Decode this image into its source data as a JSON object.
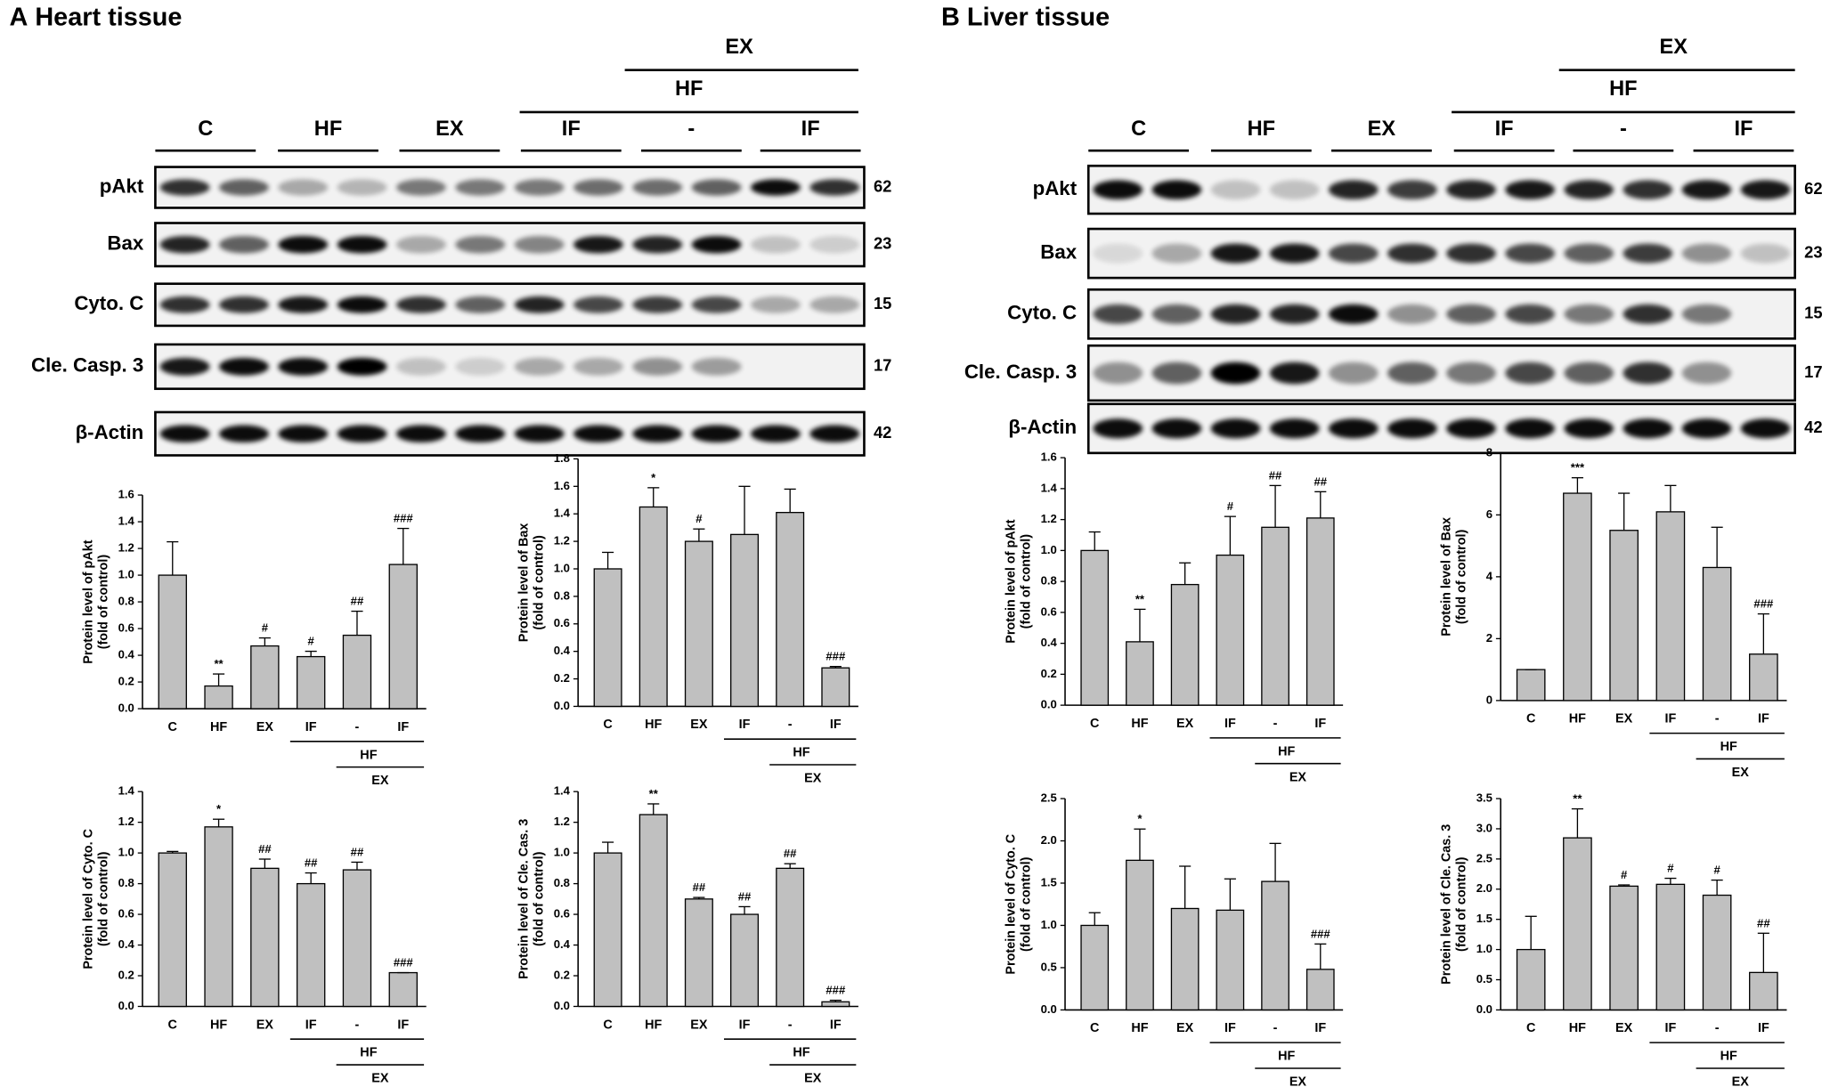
{
  "panels": [
    {
      "letter": "A",
      "title": "Heart tissue",
      "blot": {
        "group_labels": [
          "C",
          "HF",
          "EX",
          "IF",
          "-",
          "IF"
        ],
        "bracket_labels": [
          "HF",
          "EX"
        ],
        "rows": [
          {
            "label": "pAkt",
            "mw": "62"
          },
          {
            "label": "Bax",
            "mw": "23"
          },
          {
            "label": "Cyto. C",
            "mw": "15"
          },
          {
            "label": "Cle. Casp. 3",
            "mw": "17"
          },
          {
            "label": "β-Actin",
            "mw": "42"
          }
        ]
      }
    },
    {
      "letter": "B",
      "title": "Liver tissue",
      "blot": {
        "group_labels": [
          "C",
          "HF",
          "EX",
          "IF",
          "-",
          "IF"
        ],
        "bracket_labels": [
          "HF",
          "EX"
        ],
        "rows": [
          {
            "label": "pAkt",
            "mw": "62"
          },
          {
            "label": "Bax",
            "mw": "23"
          },
          {
            "label": "Cyto. C",
            "mw": "15"
          },
          {
            "label": "Cle. Casp. 3",
            "mw": "17"
          },
          {
            "label": "β-Actin",
            "mw": "42"
          }
        ]
      }
    }
  ],
  "chart_data": [
    {
      "type": "bar",
      "ylabel": [
        "Protein level of pAkt",
        "(fold of control)"
      ],
      "categories": [
        "C",
        "HF",
        "EX",
        "IF",
        "-",
        "IF"
      ],
      "values": [
        1.0,
        0.17,
        0.47,
        0.39,
        0.55,
        1.08
      ],
      "errors": [
        0.25,
        0.09,
        0.06,
        0.04,
        0.18,
        0.27
      ],
      "significance": [
        null,
        "**",
        "#",
        "#",
        "##",
        "###"
      ],
      "group_labels": [
        "HF",
        "EX"
      ],
      "color": "#c0c0c0",
      "ylim": [
        0,
        1.6
      ],
      "yticks": [
        {
          "value": 0,
          "label": "0.0"
        },
        0.2,
        0.4,
        0.6,
        0.8,
        {
          "value": 1,
          "label": "1.0"
        },
        1.2,
        1.4,
        1.6
      ]
    },
    {
      "type": "bar",
      "ylabel": [
        "Protein level of Bax",
        "(fold of control)"
      ],
      "categories": [
        "C",
        "HF",
        "EX",
        "IF",
        "-",
        "IF"
      ],
      "values": [
        1.0,
        1.45,
        1.2,
        1.25,
        1.41,
        0.28
      ],
      "errors": [
        0.12,
        0.14,
        0.09,
        0.35,
        0.17,
        0.01
      ],
      "significance": [
        null,
        "*",
        "#",
        null,
        null,
        "###"
      ],
      "group_labels": [
        "HF",
        "EX"
      ],
      "color": "#c0c0c0",
      "ylim": [
        0,
        1.8
      ],
      "yticks": [
        {
          "value": 0,
          "label": "0.0"
        },
        0.2,
        0.4,
        0.6,
        0.8,
        {
          "value": 1,
          "label": "1.0"
        },
        1.2,
        1.4,
        1.6,
        1.8
      ]
    },
    {
      "type": "bar",
      "ylabel": [
        "Protein level of Cyto. C",
        "(fold of control)"
      ],
      "categories": [
        "C",
        "HF",
        "EX",
        "IF",
        "-",
        "IF"
      ],
      "values": [
        1.0,
        1.17,
        0.9,
        0.8,
        0.89,
        0.22
      ],
      "errors": [
        0.01,
        0.05,
        0.06,
        0.07,
        0.05,
        0.0
      ],
      "significance": [
        null,
        "*",
        "##",
        "##",
        "##",
        "###"
      ],
      "group_labels": [
        "HF",
        "EX"
      ],
      "color": "#c0c0c0",
      "ylim": [
        0,
        1.4
      ],
      "yticks": [
        {
          "value": 0,
          "label": "0.0"
        },
        0.2,
        0.4,
        0.6,
        0.8,
        {
          "value": 1,
          "label": "1.0"
        },
        1.2,
        1.4
      ]
    },
    {
      "type": "bar",
      "ylabel": [
        "Protein level of Cle. Cas. 3",
        "(fold of control)"
      ],
      "categories": [
        "C",
        "HF",
        "EX",
        "IF",
        "-",
        "IF"
      ],
      "values": [
        1.0,
        1.25,
        0.7,
        0.6,
        0.9,
        0.03
      ],
      "errors": [
        0.07,
        0.07,
        0.01,
        0.05,
        0.03,
        0.01
      ],
      "significance": [
        null,
        "**",
        "##",
        "##",
        "##",
        "###"
      ],
      "group_labels": [
        "HF",
        "EX"
      ],
      "color": "#c0c0c0",
      "ylim": [
        0,
        1.4
      ],
      "yticks": [
        {
          "value": 0,
          "label": "0.0"
        },
        0.2,
        0.4,
        0.6,
        0.8,
        {
          "value": 1,
          "label": "1.0"
        },
        1.2,
        1.4
      ]
    },
    {
      "type": "bar",
      "ylabel": [
        "Protein level of pAkt",
        "(fold of control)"
      ],
      "categories": [
        "C",
        "HF",
        "EX",
        "IF",
        "-",
        "IF"
      ],
      "values": [
        1.0,
        0.41,
        0.78,
        0.97,
        1.15,
        1.21
      ],
      "errors": [
        0.12,
        0.21,
        0.14,
        0.25,
        0.27,
        0.17
      ],
      "significance": [
        null,
        "**",
        null,
        "#",
        "##",
        "##"
      ],
      "group_labels": [
        "HF",
        "EX"
      ],
      "color": "#c0c0c0",
      "ylim": [
        0,
        1.6
      ],
      "yticks": [
        {
          "value": 0,
          "label": "0.0"
        },
        0.2,
        0.4,
        0.6,
        0.8,
        {
          "value": 1,
          "label": "1.0"
        },
        1.2,
        1.4,
        1.6
      ]
    },
    {
      "type": "bar",
      "ylabel": [
        "Protein level of Bax",
        "(fold of control)"
      ],
      "categories": [
        "C",
        "HF",
        "EX",
        "IF",
        "-",
        "IF"
      ],
      "values": [
        1.0,
        6.7,
        5.5,
        6.1,
        4.3,
        1.5
      ],
      "errors": [
        0.0,
        0.5,
        1.2,
        0.85,
        1.3,
        1.3
      ],
      "significance": [
        null,
        "***",
        null,
        null,
        null,
        "###"
      ],
      "group_labels": [
        "HF",
        "EX"
      ],
      "color": "#c0c0c0",
      "ylim": [
        0,
        8
      ],
      "yticks": [
        0,
        2,
        4,
        6,
        8
      ]
    },
    {
      "type": "bar",
      "ylabel": [
        "Protein level of Cyto. C",
        "(fold of control)"
      ],
      "categories": [
        "C",
        "HF",
        "EX",
        "IF",
        "-",
        "IF"
      ],
      "values": [
        1.0,
        1.77,
        1.2,
        1.18,
        1.52,
        0.48
      ],
      "errors": [
        0.15,
        0.37,
        0.5,
        0.37,
        0.45,
        0.3
      ],
      "significance": [
        null,
        "*",
        null,
        null,
        null,
        "###"
      ],
      "group_labels": [
        "HF",
        "EX"
      ],
      "color": "#c0c0c0",
      "ylim": [
        0,
        2.5
      ],
      "yticks": [
        {
          "value": 0,
          "label": "0.0"
        },
        0.5,
        {
          "value": 1,
          "label": "1.0"
        },
        1.5,
        {
          "value": 2,
          "label": "2.0"
        },
        2.5
      ]
    },
    {
      "type": "bar",
      "ylabel": [
        "Protein level of Cle. Cas. 3",
        "(fold of control)"
      ],
      "categories": [
        "C",
        "HF",
        "EX",
        "IF",
        "-",
        "IF"
      ],
      "values": [
        1.0,
        2.85,
        2.05,
        2.08,
        1.9,
        0.62
      ],
      "errors": [
        0.55,
        0.48,
        0.02,
        0.1,
        0.25,
        0.65
      ],
      "significance": [
        null,
        "**",
        "#",
        "#",
        "#",
        "##"
      ],
      "group_labels": [
        "HF",
        "EX"
      ],
      "color": "#c0c0c0",
      "ylim": [
        0,
        3.5
      ],
      "yticks": [
        {
          "value": 0,
          "label": "0.0"
        },
        0.5,
        {
          "value": 1,
          "label": "1.0"
        },
        1.5,
        {
          "value": 2,
          "label": "2.0"
        },
        2.5,
        {
          "value": 3,
          "label": "3.0"
        },
        3.5
      ]
    }
  ]
}
